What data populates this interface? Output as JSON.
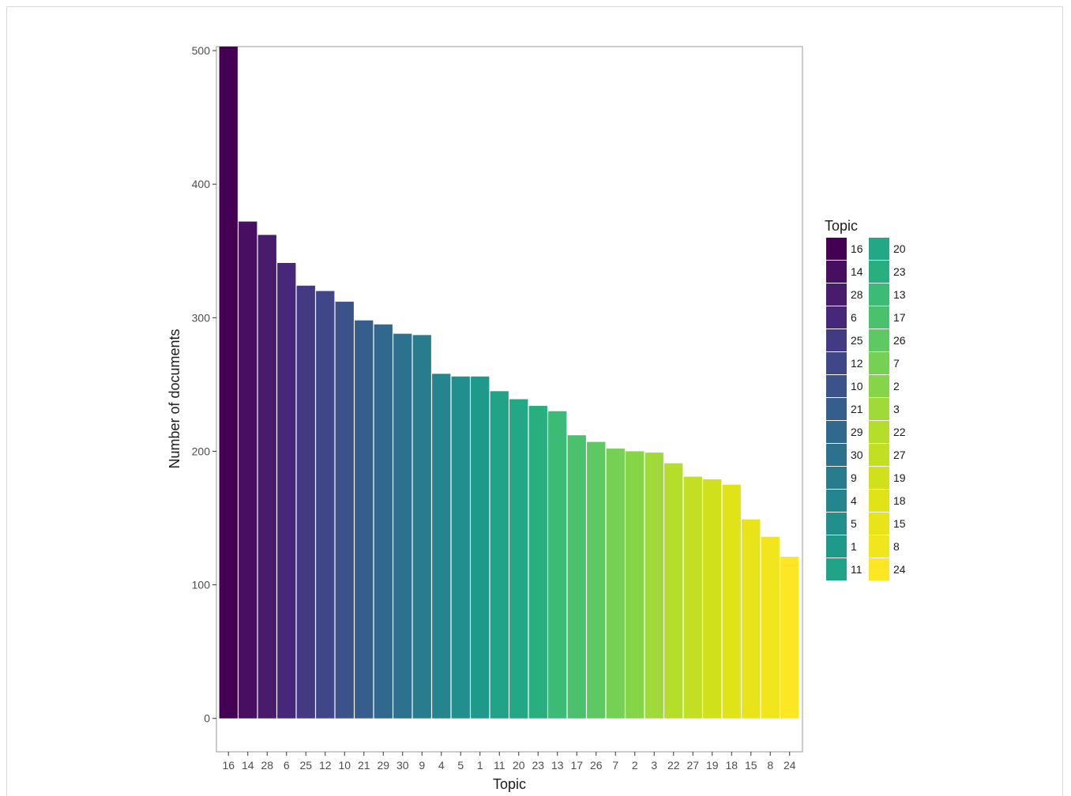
{
  "chart_data": {
    "type": "bar",
    "xlabel": "Topic",
    "ylabel": "Number of documents",
    "ylim": [
      -25,
      503
    ],
    "yticks": [
      0,
      100,
      200,
      300,
      400,
      500
    ],
    "grid": false,
    "legend_position": "right",
    "legend_title": "Topic",
    "categories": [
      "16",
      "14",
      "28",
      "6",
      "25",
      "12",
      "10",
      "21",
      "29",
      "30",
      "9",
      "4",
      "5",
      "1",
      "11",
      "20",
      "23",
      "13",
      "17",
      "26",
      "7",
      "2",
      "3",
      "22",
      "27",
      "19",
      "18",
      "15",
      "8",
      "24"
    ],
    "values": [
      503,
      372,
      362,
      341,
      324,
      320,
      312,
      298,
      295,
      288,
      287,
      258,
      256,
      256,
      245,
      239,
      234,
      230,
      212,
      207,
      202,
      200,
      199,
      191,
      181,
      179,
      175,
      149,
      136,
      121
    ],
    "colors": [
      "#440154",
      "#470E61",
      "#481B6D",
      "#46277A",
      "#443983",
      "#3F4788",
      "#3B528B",
      "#355E8D",
      "#31688E",
      "#2D718E",
      "#287C8E",
      "#25858E",
      "#21908D",
      "#1F9A8A",
      "#20A386",
      "#22A884",
      "#29AF7F",
      "#3BBB75",
      "#4AC16D",
      "#5EC962",
      "#75D054",
      "#86D549",
      "#9FDA3A",
      "#B5DE2B",
      "#C2DF23",
      "#D0E11C",
      "#DFE318",
      "#E8E419",
      "#F1E51D",
      "#FDE725"
    ]
  }
}
